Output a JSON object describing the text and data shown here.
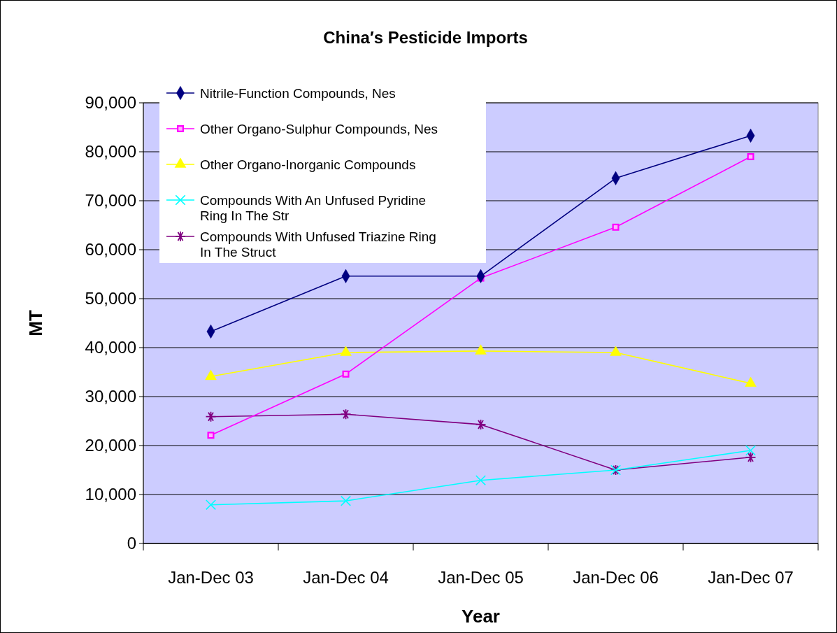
{
  "chart_data": {
    "type": "line",
    "title": "China′s Pesticide Imports",
    "xlabel": "Year",
    "ylabel": "MT",
    "categories": [
      "Jan-Dec 03",
      "Jan-Dec 04",
      "Jan-Dec 05",
      "Jan-Dec 06",
      "Jan-Dec 07"
    ],
    "series": [
      {
        "name": "Nitrile-Function Compounds, Nes",
        "color": "#000080",
        "marker": "diamond",
        "values": [
          43300,
          54600,
          54600,
          74600,
          83300
        ]
      },
      {
        "name": "Other Organo-Sulphur Compounds, Nes",
        "color": "#ff00ff",
        "marker": "square",
        "values": [
          22100,
          34600,
          54200,
          64600,
          79000
        ]
      },
      {
        "name": "Other Organo-Inorganic Compounds",
        "color": "#ffff00",
        "marker": "triangle",
        "values": [
          34100,
          39000,
          39300,
          39000,
          32700
        ]
      },
      {
        "name": "Compounds With An Unfused Pyridine Ring In The Str",
        "color": "#00ffff",
        "marker": "cross",
        "values": [
          7900,
          8700,
          12900,
          15000,
          19000
        ]
      },
      {
        "name": "Compounds With Unfused Triazine Ring In The Struct",
        "color": "#800080",
        "marker": "star",
        "values": [
          25900,
          26400,
          24300,
          15000,
          17600
        ]
      }
    ],
    "ylim": [
      0,
      90000
    ],
    "yticks": [
      {
        "value": 0,
        "label": "0"
      },
      {
        "value": 10000,
        "label": "10,000"
      },
      {
        "value": 20000,
        "label": "20,000"
      },
      {
        "value": 30000,
        "label": "30,000"
      },
      {
        "value": 40000,
        "label": "40,000"
      },
      {
        "value": 50000,
        "label": "50,000"
      },
      {
        "value": 60000,
        "label": "60,000"
      },
      {
        "value": 70000,
        "label": "70,000"
      },
      {
        "value": 80000,
        "label": "80,000"
      },
      {
        "value": 90000,
        "label": "90,000"
      }
    ],
    "grid": "y",
    "legend": "top left",
    "line_style": "solid"
  }
}
